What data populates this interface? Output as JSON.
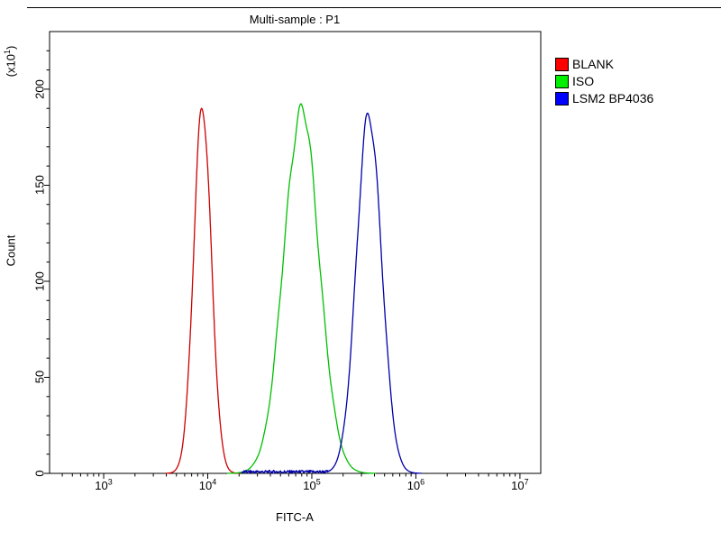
{
  "chart_data": {
    "type": "line",
    "title": "Multi-sample : P1",
    "xlabel": "FITC-A",
    "ylabel": "Count",
    "y_unit": "(x10^1)",
    "x_scale": "log10",
    "x_log_range": [
      2.48,
      7.2
    ],
    "x_tick_exponents": [
      3,
      4,
      5,
      6,
      7
    ],
    "y_ticks": [
      0,
      50,
      100,
      150,
      200
    ],
    "y_minor_step": 10,
    "ylim": [
      0,
      230
    ],
    "grid": false,
    "legend_position": "right",
    "series": [
      {
        "name": "BLANK",
        "color": "#cc0000",
        "legend_color": "#ff0000",
        "peak_x": 9000,
        "peak_log10": 3.95,
        "peak_count": 190,
        "sigma_log10": 0.085
      },
      {
        "name": "ISO",
        "color": "#00c000",
        "legend_color": "#00ee00",
        "peak_x": 80000,
        "peak_log10": 4.9,
        "peak_count": 189,
        "sigma_log10": 0.17
      },
      {
        "name": "LSM2 BP4036",
        "color": "#0000a8",
        "legend_color": "#0000ff",
        "peak_x": 355000,
        "peak_log10": 5.55,
        "peak_count": 187,
        "sigma_log10": 0.12,
        "baseline_noise_from_log10": 4.33,
        "baseline_noise_level": 1.6
      }
    ]
  }
}
